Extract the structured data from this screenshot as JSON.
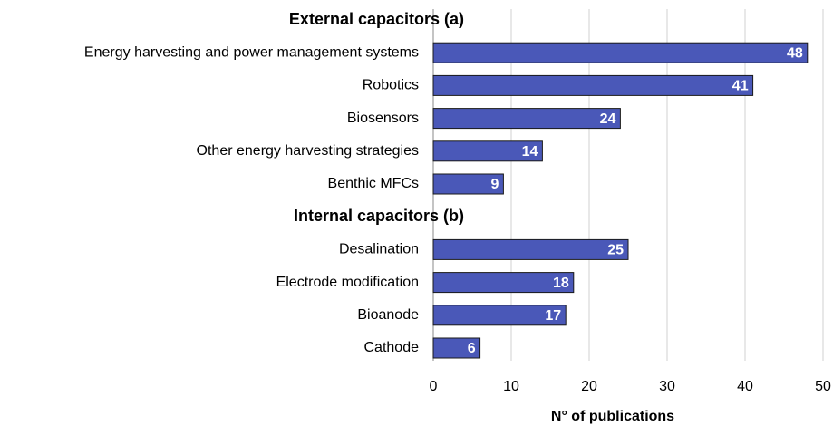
{
  "chart_data": {
    "type": "bar",
    "orientation": "horizontal",
    "groups": [
      {
        "name": "External capacitors (a)",
        "categories": [
          "Energy harvesting and power management systems",
          "Robotics",
          "Biosensors",
          "Other energy harvesting strategies",
          "Benthic MFCs"
        ],
        "values": [
          48,
          41,
          24,
          14,
          9
        ]
      },
      {
        "name": "Internal capacitors (b)",
        "categories": [
          "Desalination",
          "Electrode modification",
          "Bioanode",
          "Cathode"
        ],
        "values": [
          25,
          18,
          17,
          6
        ]
      }
    ],
    "color": "#4a58b8",
    "xlabel": "N° of publications",
    "xlim": [
      0,
      50
    ],
    "xticks": [
      0,
      10,
      20,
      30,
      40,
      50
    ],
    "grid": true
  }
}
